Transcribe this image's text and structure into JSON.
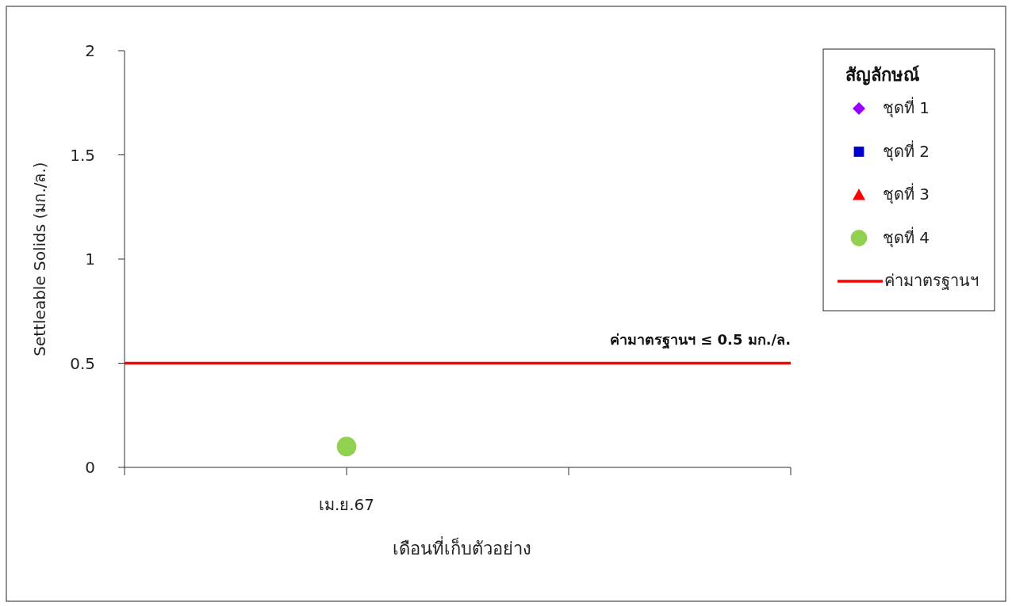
{
  "chart_data": {
    "type": "scatter",
    "xlabel": "เดือนที่เก็บตัวอย่าง",
    "ylabel": "Settleable Solids  (มก./ล.)",
    "legend_title": "สัญลักษณ์",
    "categories": [
      null,
      "เม.ย.67",
      null,
      null
    ],
    "series": [
      {
        "name": "ชุดที่ 1",
        "color": "#9900ff",
        "marker": "diamond",
        "values": [
          null,
          null,
          null,
          null
        ]
      },
      {
        "name": "ชุดที่ 2",
        "color": "#0000cc",
        "marker": "square",
        "values": [
          null,
          null,
          null,
          null
        ]
      },
      {
        "name": "ชุดที่ 3",
        "color": "#ff0000",
        "marker": "triangle",
        "values": [
          null,
          null,
          null,
          null
        ]
      },
      {
        "name": "ชุดที่ 4",
        "color": "#92d050",
        "marker": "circle",
        "values": [
          null,
          0.1,
          null,
          null
        ]
      }
    ],
    "ref_lines": [
      {
        "axis": "y",
        "value": 0.5,
        "label": "ค่ามาตรฐานฯ",
        "color": "#ff0000",
        "line_style": "solid"
      }
    ],
    "annotations": [
      {
        "text": "ค่ามาตรฐานฯ ≤ 0.5 มก./ล.",
        "y": 0.5
      }
    ],
    "ylim": [
      0,
      2
    ],
    "yticks": [
      0,
      0.5,
      1,
      1.5,
      2
    ],
    "grid": false,
    "legend": "right"
  }
}
